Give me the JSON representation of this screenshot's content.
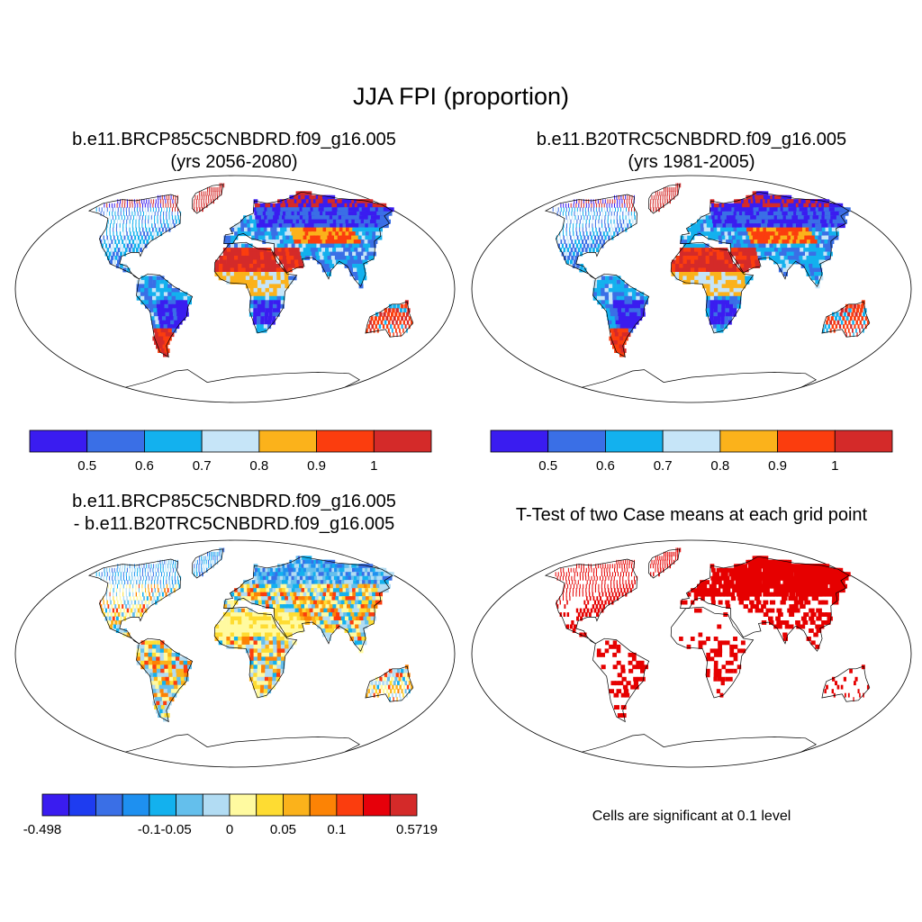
{
  "title": "JJA FPI (proportion)",
  "panels": [
    {
      "title_line1": "b.e11.BRCP85C5CNBDRD.f09_g16.005",
      "title_line2": "(yrs 2056-2080)"
    },
    {
      "title_line1": "b.e11.B20TRC5CNBDRD.f09_g16.005",
      "title_line2": "(yrs 1981-2005)"
    },
    {
      "title_line1": "b.e11.BRCP85C5CNBDRD.f09_g16.005",
      "title_line2": "- b.e11.B20TRC5CNBDRD.f09_g16.005"
    },
    {
      "title_line1": "T-Test of two Case means at each grid point"
    }
  ],
  "colorbar_abs": {
    "colors": [
      "#3a1cf0",
      "#3a6fe6",
      "#13b1ee",
      "#c6e5f8",
      "#fbb21b",
      "#fb3d0e",
      "#d42a29"
    ],
    "labels": [
      "0.5",
      "0.6",
      "0.7",
      "0.8",
      "0.9",
      "1"
    ]
  },
  "colorbar_diff": {
    "colors": [
      "#3a1cf0",
      "#1e3cf0",
      "#3a6fe6",
      "#1e90f0",
      "#13b1ee",
      "#64bfec",
      "#b2dcf3",
      "#fffaa0",
      "#fedc32",
      "#fbb21b",
      "#fc8305",
      "#fb3d0e",
      "#e6000a",
      "#d42a29"
    ],
    "labels": [
      "-0.498",
      "-0.1",
      "-0.05",
      "0",
      "0.05",
      "0.1",
      "0.5719"
    ],
    "label_boundaries": [
      0,
      4,
      5,
      7,
      9,
      11,
      14
    ]
  },
  "significance_color": "#e60000",
  "note": "Cells are significant at 0.1 level"
}
